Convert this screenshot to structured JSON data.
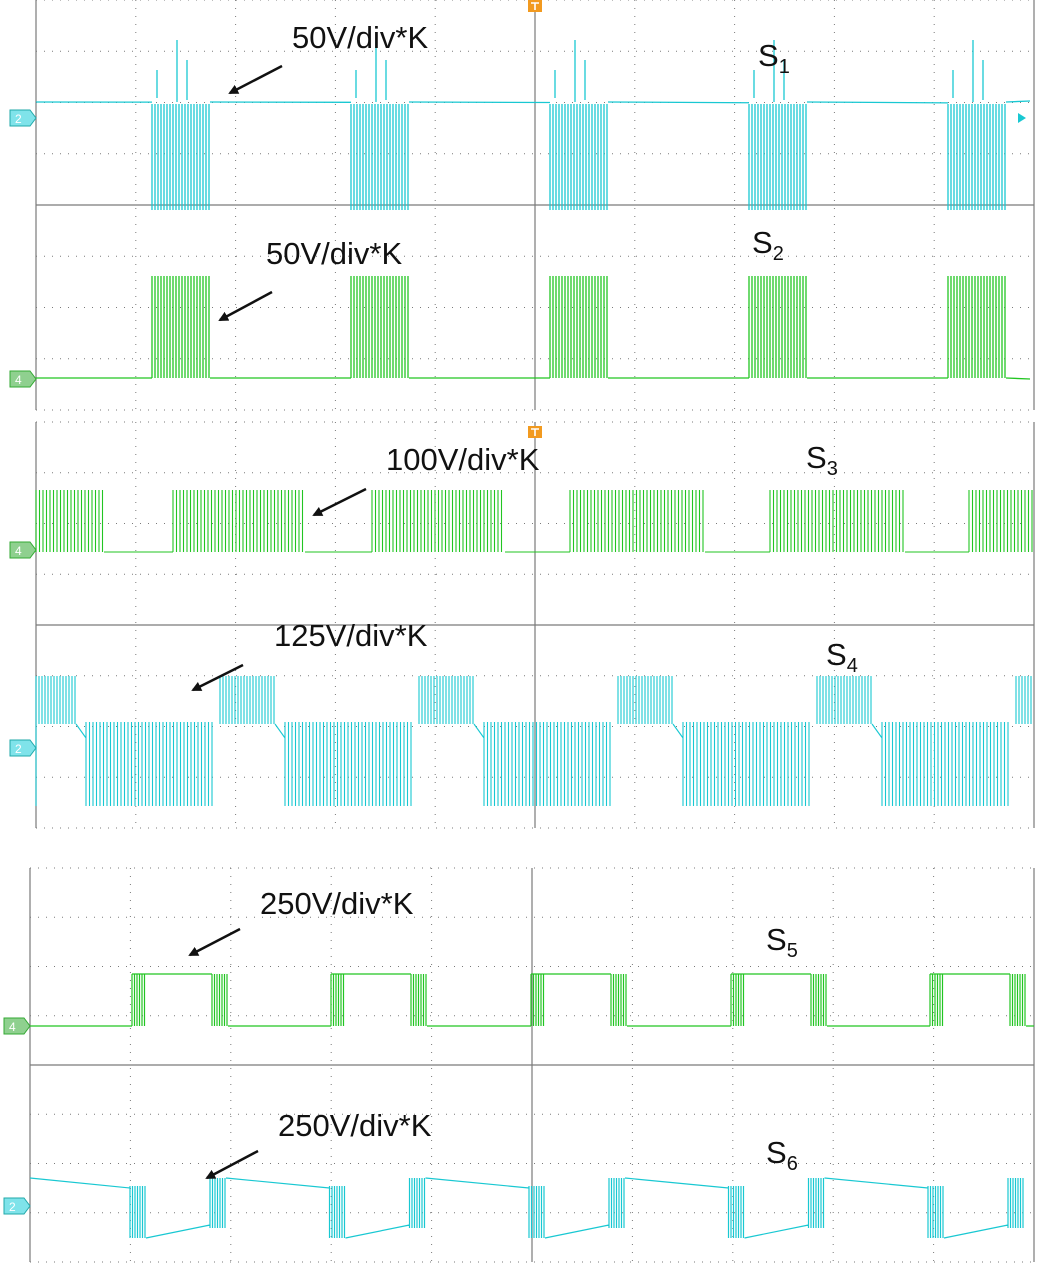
{
  "colors": {
    "cyan": "#19c8d2",
    "cyan_dark": "#0b8f98",
    "green": "#22c522",
    "green_dark": "#0f8a0f",
    "trigger": "#f29a1f",
    "grid": "#7a7a7a",
    "text": "#111111"
  },
  "chart_data": [
    {
      "type": "line",
      "title": "",
      "panel": "top",
      "traces": [
        {
          "name": "S1",
          "label_main": "S",
          "label_sub": "1",
          "scale": "50V/div*K",
          "channel": "2",
          "color": "cyan",
          "pattern": "negative_pulse_burst",
          "period_divisions": 2
        },
        {
          "name": "S2",
          "label_main": "S",
          "label_sub": "2",
          "scale": "50V/div*K",
          "channel": "4",
          "color": "green",
          "pattern": "positive_pulse_burst",
          "period_divisions": 2
        }
      ]
    },
    {
      "type": "line",
      "title": "",
      "panel": "middle",
      "traces": [
        {
          "name": "S3",
          "label_main": "S",
          "label_sub": "3",
          "scale": "100V/div*K",
          "channel": "4",
          "color": "green",
          "pattern": "pwm_bursts",
          "period_divisions": 2
        },
        {
          "name": "S4",
          "label_main": "S",
          "label_sub": "4",
          "scale": "125V/div*K",
          "channel": "2",
          "color": "cyan",
          "pattern": "bipolar_pwm",
          "period_divisions": 2
        }
      ]
    },
    {
      "type": "line",
      "title": "",
      "panel": "bottom",
      "traces": [
        {
          "name": "S5",
          "label_main": "S",
          "label_sub": "5",
          "scale": "250V/div*K",
          "channel": "4",
          "color": "green",
          "pattern": "square_wave",
          "period_divisions": 2
        },
        {
          "name": "S6",
          "label_main": "S",
          "label_sub": "6",
          "scale": "250V/div*K",
          "channel": "2",
          "color": "cyan",
          "pattern": "sawtooth_square",
          "period_divisions": 2
        }
      ]
    }
  ]
}
